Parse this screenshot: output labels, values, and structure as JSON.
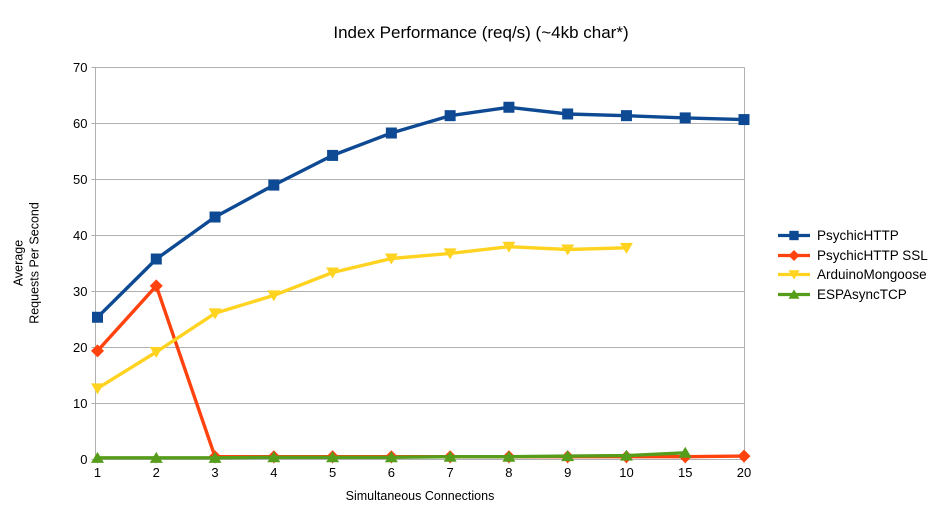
{
  "chart_data": {
    "type": "line",
    "title": "Index Performance (req/s) (~4kb char*)",
    "xlabel": "Simultaneous Connections",
    "ylabel": "Average\nRequests Per Second",
    "categories": [
      "1",
      "2",
      "3",
      "4",
      "5",
      "6",
      "7",
      "8",
      "9",
      "10",
      "15",
      "20"
    ],
    "ylim": [
      0,
      70
    ],
    "ytick_step": 10,
    "grid": "horizontal-only",
    "legend_position": "right",
    "axis_color": "#b0b0b0",
    "text_color": "#000000",
    "background_color": "#ffffff",
    "series": [
      {
        "name": "PsychicHTTP",
        "color": "#0e4a93",
        "marker": "square",
        "values": [
          25.4,
          35.8,
          43.3,
          49.0,
          54.3,
          58.3,
          61.4,
          62.9,
          61.7,
          61.4,
          61.0,
          60.7
        ]
      },
      {
        "name": "PsychicHTTP SSL",
        "color": "#ff420e",
        "marker": "diamond",
        "values": [
          19.4,
          31.0,
          0.5,
          0.5,
          0.5,
          0.5,
          0.5,
          0.5,
          0.5,
          0.5,
          0.5,
          0.6
        ]
      },
      {
        "name": "ArduinoMongoose",
        "color": "#ffd320",
        "marker": "triangle-down",
        "values": [
          12.7,
          19.2,
          26.1,
          29.3,
          33.4,
          35.9,
          36.8,
          38.0,
          37.5,
          37.8,
          null,
          null
        ]
      },
      {
        "name": "ESPAsyncTCP",
        "color": "#579d1c",
        "marker": "triangle-up",
        "values": [
          0.3,
          0.3,
          0.3,
          0.4,
          0.4,
          0.4,
          0.5,
          0.5,
          0.6,
          0.7,
          1.2,
          null
        ]
      }
    ]
  }
}
